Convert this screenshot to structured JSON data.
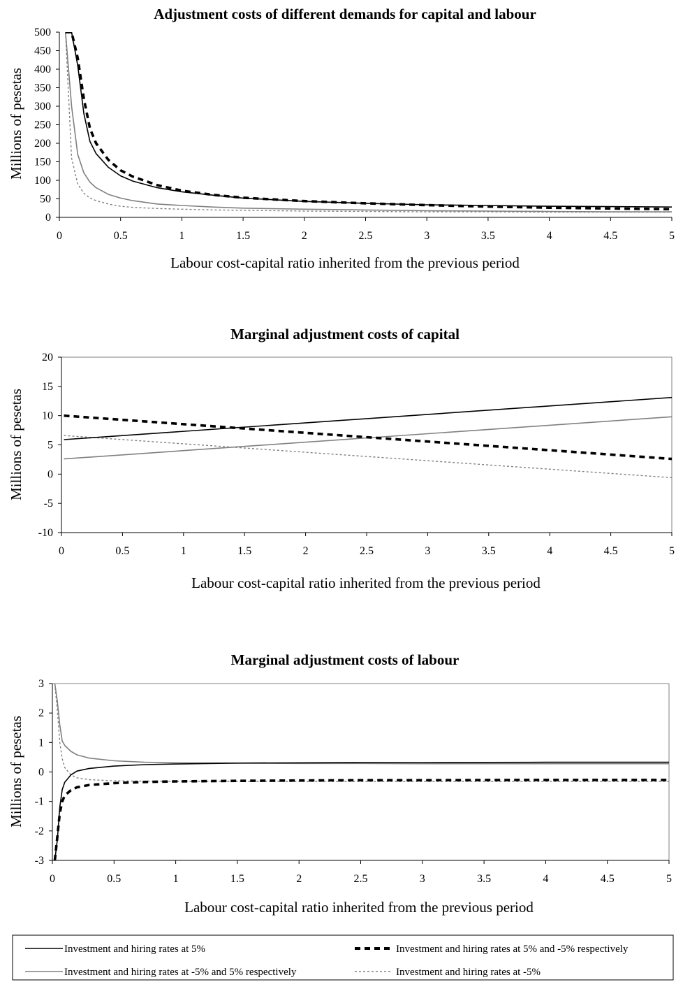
{
  "chart_data": [
    {
      "type": "line",
      "title": "Adjustment costs of different demands for capital and labour",
      "xlabel": "Labour cost-capital ratio inherited from the previous period",
      "ylabel": "Millions of pesetas",
      "xlim": [
        0,
        5
      ],
      "ylim": [
        0,
        500
      ],
      "xticks": [
        "0",
        "0.5",
        "1",
        "1.5",
        "2",
        "2.5",
        "3",
        "3.5",
        "4",
        "4.5",
        "5"
      ],
      "yticks": [
        "0",
        "50",
        "100",
        "150",
        "200",
        "250",
        "300",
        "350",
        "400",
        "450",
        "500"
      ],
      "x": [
        0.05,
        0.1,
        0.15,
        0.2,
        0.25,
        0.3,
        0.4,
        0.5,
        0.6,
        0.8,
        1,
        1.25,
        1.5,
        2,
        2.5,
        3,
        3.5,
        4,
        4.5,
        5
      ],
      "series": [
        {
          "values": [
            500,
            500,
            410,
            280,
            205,
            172,
            135,
            112,
            98,
            80,
            69,
            60,
            52,
            43,
            38,
            34,
            32,
            30,
            29,
            28
          ]
        },
        {
          "values": [
            500,
            500,
            430,
            320,
            240,
            200,
            155,
            127,
            110,
            87,
            72,
            61,
            53,
            44,
            38,
            33,
            29,
            26,
            24,
            22
          ]
        },
        {
          "values": [
            500,
            300,
            170,
            120,
            95,
            80,
            62,
            52,
            45,
            36,
            32,
            28,
            25,
            22,
            20,
            18,
            17,
            16,
            15,
            15
          ]
        },
        {
          "values": [
            500,
            160,
            90,
            65,
            52,
            45,
            36,
            30,
            27,
            24,
            22,
            20,
            19,
            17,
            16,
            15,
            15,
            14,
            14,
            14
          ]
        }
      ]
    },
    {
      "type": "line",
      "title": "Marginal adjustment costs of capital",
      "xlabel": "Labour cost-capital ratio inherited from the previous period",
      "ylabel": "Millions of pesetas",
      "xlim": [
        0,
        5
      ],
      "ylim": [
        -10,
        20
      ],
      "xticks": [
        "0",
        "0.5",
        "1",
        "1.5",
        "2",
        "2.5",
        "3",
        "3.5",
        "4",
        "4.5",
        "5"
      ],
      "yticks": [
        "-10",
        "-5",
        "0",
        "5",
        "10",
        "15",
        "20"
      ],
      "x": [
        0.02,
        5
      ],
      "series": [
        {
          "values": [
            5.9,
            13.1
          ]
        },
        {
          "values": [
            10.0,
            2.6
          ]
        },
        {
          "values": [
            2.6,
            9.8
          ]
        },
        {
          "values": [
            6.6,
            -0.6
          ]
        }
      ]
    },
    {
      "type": "line",
      "title": "Marginal adjustment costs of labour",
      "xlabel": "Labour cost-capital ratio inherited from the previous period",
      "ylabel": "Millions of pesetas",
      "xlim": [
        0,
        5
      ],
      "ylim": [
        -3,
        3
      ],
      "xticks": [
        "0",
        "0.5",
        "1",
        "1.5",
        "2",
        "2.5",
        "3",
        "3.5",
        "4",
        "4.5",
        "5"
      ],
      "yticks": [
        "-3",
        "-2",
        "-1",
        "0",
        "1",
        "2",
        "3"
      ],
      "x": [
        0.02,
        0.04,
        0.06,
        0.08,
        0.1,
        0.15,
        0.2,
        0.3,
        0.5,
        0.75,
        1,
        1.5,
        2,
        2.5,
        3,
        4,
        5
      ],
      "series": [
        {
          "values": [
            -3,
            -2.3,
            -1.2,
            -0.6,
            -0.35,
            -0.1,
            0.03,
            0.12,
            0.2,
            0.25,
            0.27,
            0.3,
            0.31,
            0.32,
            0.32,
            0.33,
            0.33
          ]
        },
        {
          "values": [
            -3,
            -2.2,
            -1.4,
            -1.0,
            -0.8,
            -0.62,
            -0.52,
            -0.44,
            -0.38,
            -0.34,
            -0.32,
            -0.3,
            -0.29,
            -0.28,
            -0.28,
            -0.27,
            -0.27
          ]
        },
        {
          "values": [
            3,
            2.4,
            1.6,
            1.05,
            0.9,
            0.7,
            0.58,
            0.47,
            0.38,
            0.33,
            0.31,
            0.3,
            0.29,
            0.29,
            0.28,
            0.28,
            0.28
          ]
        },
        {
          "values": [
            3,
            2.1,
            1.0,
            0.45,
            0.15,
            -0.1,
            -0.2,
            -0.26,
            -0.3,
            -0.31,
            -0.32,
            -0.32,
            -0.32,
            -0.32,
            -0.32,
            -0.32,
            -0.32
          ]
        }
      ]
    }
  ],
  "legend": [
    {
      "label": "Investment and hiring rates at 5%",
      "color": "#000000",
      "style": "solid"
    },
    {
      "label": "Investment and hiring rates at 5% and -5% respectively",
      "color": "#000000",
      "style": "thick-dashed"
    },
    {
      "label": "Investment and hiring rates at -5% and 5% respectively",
      "color": "#808080",
      "style": "solid"
    },
    {
      "label": "Investment and hiring rates at -5%",
      "color": "#808080",
      "style": "dotted"
    }
  ]
}
